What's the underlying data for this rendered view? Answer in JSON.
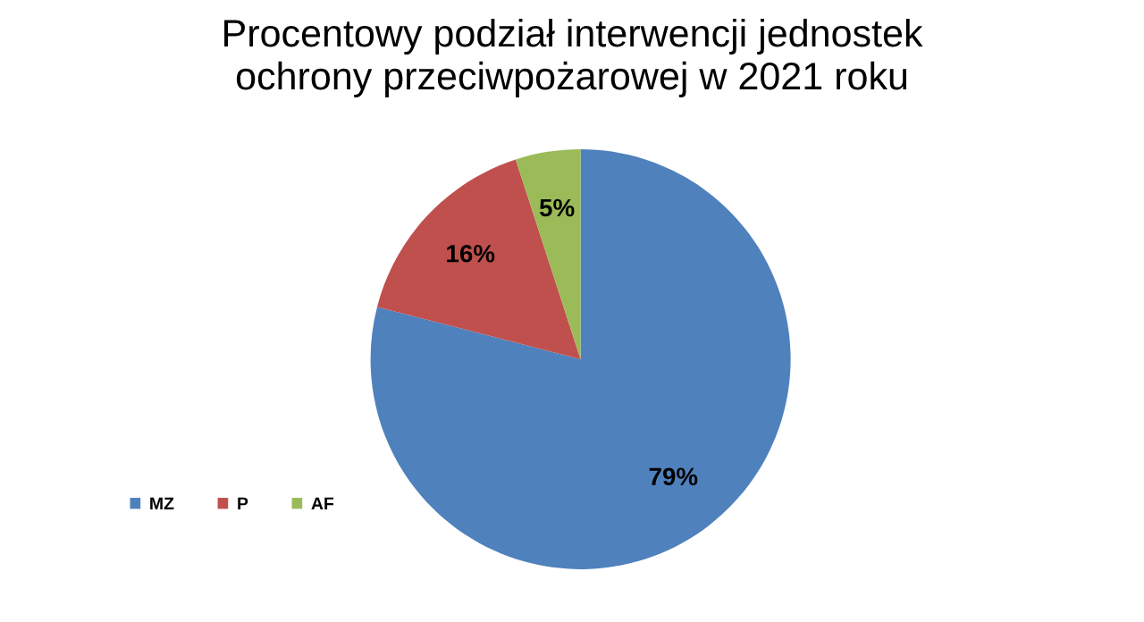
{
  "chart_data": {
    "type": "pie",
    "title": "Procentowy podział interwencji jednostek\nochrony przeciwpożarowej w 2021 roku",
    "categories": [
      "MZ",
      "P",
      "AF"
    ],
    "values": [
      79,
      16,
      5
    ],
    "colors": [
      "#4f81bd",
      "#c0504d",
      "#9bbb59"
    ],
    "value_labels": [
      "79%",
      "16%",
      "5%"
    ],
    "legend": "bottom left"
  }
}
